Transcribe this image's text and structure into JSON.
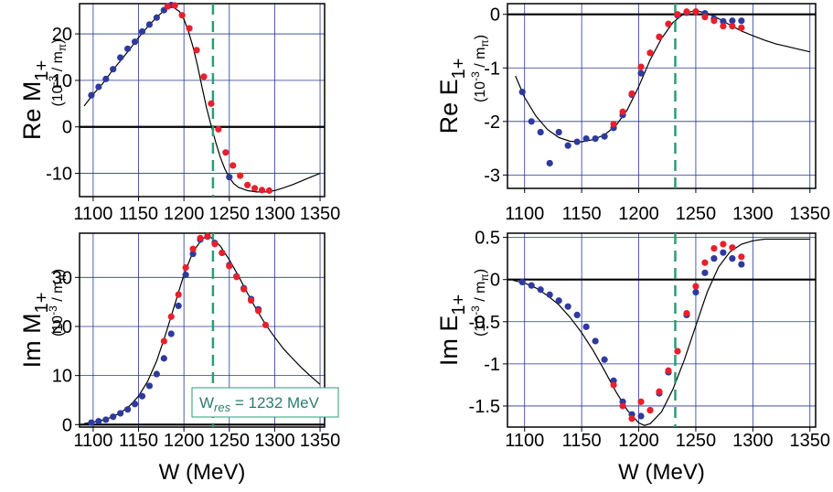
{
  "chart_data": [
    {
      "type": "scatter",
      "ylabel_main": "Re M",
      "ylabel_sub": "1+",
      "unit": "(10",
      "unit_exp": "-3",
      "unit_rest": " / m",
      "unit_sub": "π",
      "unit_close": ")",
      "xlim": [
        1085,
        1355
      ],
      "ylim": [
        -15,
        26.5
      ],
      "xticks": [
        1100,
        1150,
        1200,
        1250,
        1300,
        1350
      ],
      "xtick_labels": [
        "1100",
        "1150",
        "1200",
        "1250",
        "1300",
        "1350"
      ],
      "yticks": [
        -10,
        0,
        10,
        20
      ],
      "ytick_labels": [
        "-10",
        "0",
        "10",
        "20"
      ],
      "grid": true,
      "colors": {
        "blue": "#2e3a9c",
        "red": "#e8202a"
      },
      "fit_curve": [
        [
          1090,
          4.5
        ],
        [
          1100,
          7
        ],
        [
          1110,
          9.2
        ],
        [
          1120,
          11.8
        ],
        [
          1130,
          14.2
        ],
        [
          1140,
          16.6
        ],
        [
          1150,
          19.2
        ],
        [
          1160,
          21.5
        ],
        [
          1170,
          23.6
        ],
        [
          1180,
          25.3
        ],
        [
          1188,
          25.8
        ],
        [
          1195,
          24.8
        ],
        [
          1200,
          23.2
        ],
        [
          1205,
          20.5
        ],
        [
          1210,
          17.2
        ],
        [
          1215,
          13.2
        ],
        [
          1220,
          8.5
        ],
        [
          1225,
          4.0
        ],
        [
          1230,
          0.3
        ],
        [
          1235,
          -3.3
        ],
        [
          1240,
          -6.5
        ],
        [
          1245,
          -9.0
        ],
        [
          1250,
          -10.9
        ],
        [
          1255,
          -12.2
        ],
        [
          1260,
          -13.0
        ],
        [
          1270,
          -13.7
        ],
        [
          1280,
          -14.0
        ],
        [
          1290,
          -14.0
        ],
        [
          1300,
          -13.7
        ],
        [
          1310,
          -13.1
        ],
        [
          1320,
          -12.4
        ],
        [
          1330,
          -11.6
        ],
        [
          1340,
          -10.8
        ],
        [
          1350,
          -10.0
        ]
      ],
      "series": [
        {
          "color": "blue",
          "x": [
            1098,
            1106,
            1114,
            1122,
            1130,
            1138,
            1146,
            1154,
            1162,
            1170,
            1178,
            1186,
            1250
          ],
          "y": [
            6.8,
            8.6,
            10.3,
            12.4,
            14.9,
            16.8,
            18.3,
            20.5,
            22.0,
            23.5,
            25.1,
            26.2,
            -10.8
          ]
        },
        {
          "color": "red",
          "x": [
            1182,
            1190,
            1198,
            1206,
            1214,
            1222,
            1230,
            1238,
            1246,
            1254,
            1262,
            1270,
            1278,
            1286,
            1294
          ],
          "y": [
            25.9,
            26.1,
            24.0,
            21.2,
            16.5,
            10.8,
            5.0,
            -0.5,
            -5.5,
            -8.3,
            -10.5,
            -12.5,
            -13.2,
            -13.6,
            -13.7
          ]
        }
      ]
    },
    {
      "type": "scatter",
      "ylabel_main": "Re E",
      "ylabel_sub": "1+",
      "unit": "(10",
      "unit_exp": "-3",
      "unit_rest": " / m",
      "unit_sub": "π",
      "unit_close": ")",
      "xlim": [
        1085,
        1355
      ],
      "ylim": [
        -3.25,
        0.2
      ],
      "xticks": [
        1100,
        1150,
        1200,
        1250,
        1300,
        1350
      ],
      "xtick_labels": [
        "1100",
        "1150",
        "1200",
        "1250",
        "1300",
        "1350"
      ],
      "yticks": [
        -3,
        -2,
        -1,
        0
      ],
      "ytick_labels": [
        "-3",
        "-2",
        "-1",
        "0"
      ],
      "grid": true,
      "colors": {
        "blue": "#2e3a9c",
        "red": "#e8202a"
      },
      "fit_curve": [
        [
          1092,
          -1.15
        ],
        [
          1100,
          -1.55
        ],
        [
          1110,
          -1.9
        ],
        [
          1120,
          -2.15
        ],
        [
          1130,
          -2.3
        ],
        [
          1140,
          -2.37
        ],
        [
          1150,
          -2.38
        ],
        [
          1160,
          -2.34
        ],
        [
          1170,
          -2.25
        ],
        [
          1180,
          -2.08
        ],
        [
          1190,
          -1.78
        ],
        [
          1200,
          -1.35
        ],
        [
          1210,
          -0.85
        ],
        [
          1220,
          -0.45
        ],
        [
          1230,
          -0.15
        ],
        [
          1240,
          0.02
        ],
        [
          1250,
          0.07
        ],
        [
          1260,
          0.02
        ],
        [
          1270,
          -0.08
        ],
        [
          1280,
          -0.2
        ],
        [
          1290,
          -0.31
        ],
        [
          1300,
          -0.4
        ],
        [
          1310,
          -0.48
        ],
        [
          1320,
          -0.55
        ],
        [
          1330,
          -0.6
        ],
        [
          1340,
          -0.65
        ],
        [
          1350,
          -0.7
        ]
      ],
      "series": [
        {
          "color": "blue",
          "x": [
            1098,
            1106,
            1114,
            1122,
            1130,
            1138,
            1146,
            1154,
            1162,
            1170,
            1178,
            1186,
            1194,
            1202,
            1210,
            1218,
            1226,
            1234,
            1242,
            1250,
            1258,
            1266,
            1274,
            1282,
            1290
          ],
          "y": [
            -1.45,
            -2.0,
            -2.2,
            -2.78,
            -2.2,
            -2.45,
            -2.38,
            -2.32,
            -2.32,
            -2.28,
            -2.12,
            -1.88,
            -1.5,
            -1.1,
            -0.72,
            -0.42,
            -0.18,
            -0.02,
            0.03,
            0.05,
            0.02,
            -0.08,
            -0.13,
            -0.12,
            -0.12
          ]
        },
        {
          "color": "red",
          "x": [
            1178,
            1186,
            1194,
            1202,
            1210,
            1218,
            1226,
            1234,
            1242,
            1250,
            1258,
            1266,
            1274,
            1282,
            1290
          ],
          "y": [
            -2.05,
            -1.82,
            -1.48,
            -0.98,
            -0.72,
            -0.42,
            -0.18,
            0.0,
            0.05,
            0.05,
            -0.05,
            -0.12,
            -0.22,
            -0.22,
            -0.25
          ]
        }
      ]
    },
    {
      "type": "scatter",
      "ylabel_main": "Im M",
      "ylabel_sub": "1+",
      "unit": "(10",
      "unit_exp": "-3",
      "unit_rest": " / m",
      "unit_sub": "π",
      "unit_close": ")",
      "xlim": [
        1085,
        1355
      ],
      "ylim": [
        -0.5,
        39
      ],
      "xticks": [
        1100,
        1150,
        1200,
        1250,
        1300,
        1350
      ],
      "xtick_labels": [
        "1100",
        "1150",
        "1200",
        "1250",
        "1300",
        "1350"
      ],
      "yticks": [
        0,
        10,
        20,
        30
      ],
      "ytick_labels": [
        "0",
        "10",
        "20",
        "30"
      ],
      "grid": true,
      "xlabel": "W (MeV)",
      "annotation": {
        "text_main": "W",
        "text_sub": "res",
        "text_rest": " = 1232 MeV"
      },
      "colors": {
        "blue": "#2e3a9c",
        "red": "#e8202a"
      },
      "fit_curve": [
        [
          1090,
          0.2
        ],
        [
          1100,
          0.5
        ],
        [
          1110,
          0.9
        ],
        [
          1120,
          1.5
        ],
        [
          1130,
          2.4
        ],
        [
          1140,
          3.8
        ],
        [
          1150,
          5.8
        ],
        [
          1160,
          8.8
        ],
        [
          1170,
          13.0
        ],
        [
          1180,
          18.5
        ],
        [
          1190,
          24.5
        ],
        [
          1200,
          30.5
        ],
        [
          1210,
          35.2
        ],
        [
          1220,
          37.8
        ],
        [
          1225,
          38.3
        ],
        [
          1230,
          38.1
        ],
        [
          1240,
          36.4
        ],
        [
          1250,
          33.6
        ],
        [
          1260,
          30.3
        ],
        [
          1270,
          26.8
        ],
        [
          1280,
          23.4
        ],
        [
          1290,
          20.4
        ],
        [
          1300,
          17.8
        ],
        [
          1310,
          15.4
        ],
        [
          1320,
          13.4
        ],
        [
          1330,
          11.5
        ],
        [
          1340,
          9.8
        ],
        [
          1350,
          8.2
        ]
      ],
      "series": [
        {
          "color": "blue",
          "x": [
            1098,
            1106,
            1114,
            1122,
            1130,
            1138,
            1146,
            1154,
            1162,
            1170,
            1178,
            1186,
            1194,
            1202,
            1210,
            1218,
            1226,
            1234,
            1242,
            1250,
            1258,
            1266,
            1274,
            1282
          ],
          "y": [
            0.4,
            0.7,
            1.0,
            1.6,
            2.3,
            3.1,
            4.2,
            5.8,
            7.9,
            10.3,
            13.5,
            18.5,
            24.2,
            30.5,
            34.8,
            37.7,
            38.3,
            37.0,
            35.0,
            32.5,
            30.2,
            27.8,
            25.6,
            23.5
          ]
        },
        {
          "color": "red",
          "x": [
            1178,
            1186,
            1194,
            1202,
            1210,
            1218,
            1226,
            1234,
            1242,
            1250,
            1258,
            1266,
            1274,
            1282,
            1290
          ],
          "y": [
            17.0,
            22.0,
            26.5,
            32.0,
            35.8,
            38.0,
            38.4,
            36.8,
            35.0,
            32.3,
            30.1,
            27.6,
            25.3,
            23.2,
            20.3
          ]
        }
      ]
    },
    {
      "type": "scatter",
      "ylabel_main": "Im E",
      "ylabel_sub": "1+",
      "unit": "(10",
      "unit_exp": "-3",
      "unit_rest": " / m",
      "unit_sub": "π",
      "unit_close": ")",
      "xlim": [
        1085,
        1355
      ],
      "ylim": [
        -1.75,
        0.55
      ],
      "xticks": [
        1100,
        1150,
        1200,
        1250,
        1300,
        1350
      ],
      "xtick_labels": [
        "1100",
        "1150",
        "1200",
        "1250",
        "1300",
        "1350"
      ],
      "yticks": [
        -1.5,
        -1,
        -0.5,
        0,
        0.5
      ],
      "ytick_labels": [
        "-1.5",
        "-1",
        "-0.5",
        "0",
        "0.5"
      ],
      "grid": true,
      "xlabel": "W (MeV)",
      "colors": {
        "blue": "#2e3a9c",
        "red": "#e8202a"
      },
      "fit_curve": [
        [
          1090,
          -0.01
        ],
        [
          1100,
          -0.04
        ],
        [
          1110,
          -0.1
        ],
        [
          1120,
          -0.19
        ],
        [
          1130,
          -0.3
        ],
        [
          1140,
          -0.45
        ],
        [
          1150,
          -0.63
        ],
        [
          1160,
          -0.84
        ],
        [
          1170,
          -1.08
        ],
        [
          1180,
          -1.33
        ],
        [
          1190,
          -1.55
        ],
        [
          1200,
          -1.7
        ],
        [
          1205,
          -1.73
        ],
        [
          1210,
          -1.71
        ],
        [
          1220,
          -1.57
        ],
        [
          1230,
          -1.3
        ],
        [
          1240,
          -0.95
        ],
        [
          1250,
          -0.55
        ],
        [
          1260,
          -0.15
        ],
        [
          1270,
          0.15
        ],
        [
          1280,
          0.33
        ],
        [
          1290,
          0.42
        ],
        [
          1300,
          0.46
        ],
        [
          1310,
          0.48
        ],
        [
          1320,
          0.48
        ],
        [
          1330,
          0.48
        ],
        [
          1340,
          0.48
        ],
        [
          1350,
          0.48
        ]
      ],
      "series": [
        {
          "color": "blue",
          "x": [
            1098,
            1106,
            1114,
            1122,
            1130,
            1138,
            1146,
            1154,
            1162,
            1170,
            1178,
            1186,
            1194,
            1202,
            1210,
            1218,
            1226,
            1234,
            1242,
            1250,
            1258,
            1266,
            1274,
            1282,
            1290
          ],
          "y": [
            -0.03,
            -0.07,
            -0.12,
            -0.18,
            -0.25,
            -0.32,
            -0.42,
            -0.56,
            -0.73,
            -0.95,
            -1.2,
            -1.45,
            -1.6,
            -1.62,
            -1.55,
            -1.35,
            -1.1,
            -0.85,
            -0.42,
            -0.15,
            0.08,
            0.25,
            0.32,
            0.25,
            0.18
          ]
        },
        {
          "color": "red",
          "x": [
            1178,
            1186,
            1194,
            1202,
            1210,
            1218,
            1226,
            1234,
            1242,
            1250,
            1258,
            1266,
            1274,
            1282,
            1290
          ],
          "y": [
            -1.25,
            -1.5,
            -1.65,
            -1.45,
            -1.55,
            -1.33,
            -1.08,
            -0.85,
            -0.4,
            -0.08,
            0.2,
            0.37,
            0.42,
            0.38,
            0.27
          ]
        }
      ]
    }
  ]
}
